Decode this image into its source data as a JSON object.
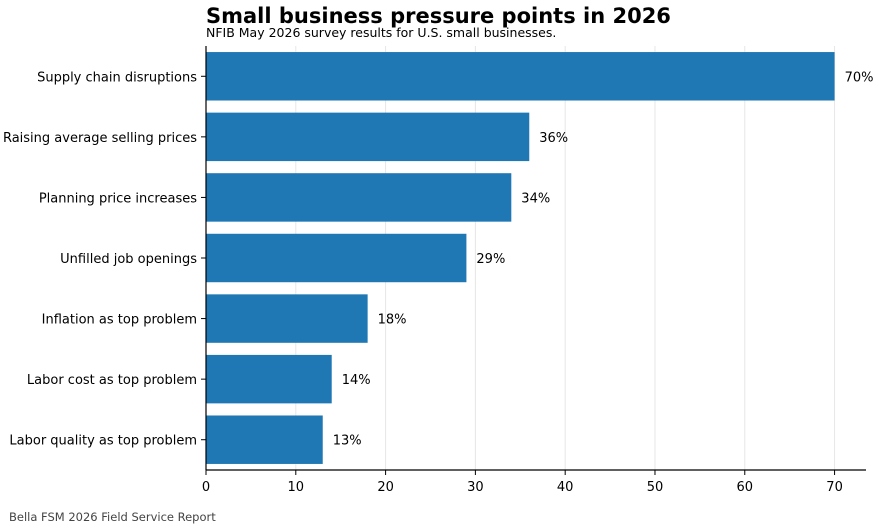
{
  "chart_data": {
    "type": "bar",
    "orientation": "horizontal",
    "title": "Small business pressure points in 2026",
    "subtitle": "NFIB May 2026 survey results for U.S. small businesses.",
    "footer": "Bella FSM 2026 Field Service Report",
    "xlabel": "",
    "ylabel": "",
    "categories": [
      "Supply chain disruptions",
      "Raising average selling prices",
      "Planning price increases",
      "Unfilled job openings",
      "Inflation as top problem",
      "Labor cost as top problem",
      "Labor quality as top problem"
    ],
    "values": [
      70,
      36,
      34,
      29,
      18,
      14,
      13
    ],
    "value_labels": [
      "70%",
      "36%",
      "34%",
      "29%",
      "18%",
      "14%",
      "13%"
    ],
    "xlim": [
      0,
      73.5
    ],
    "xticks": [
      0,
      10,
      20,
      30,
      40,
      50,
      60,
      70
    ],
    "grid": "vertical",
    "bar_color": "#1f77b4"
  }
}
